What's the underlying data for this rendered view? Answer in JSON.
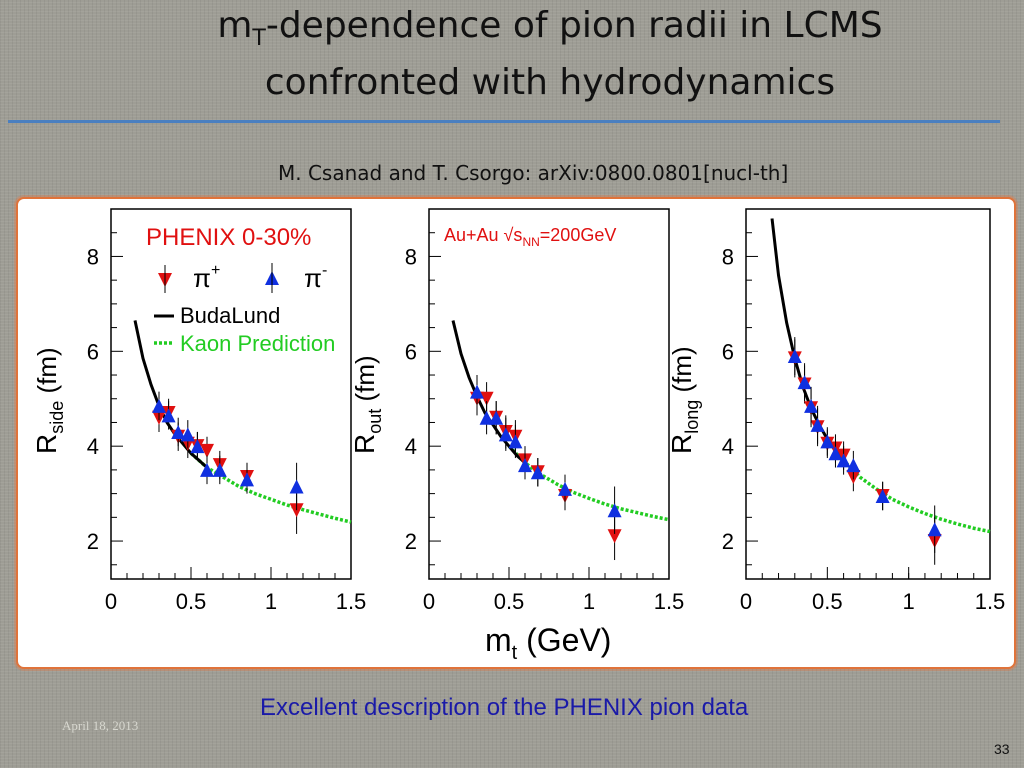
{
  "slide": {
    "title_main": "m",
    "title_sub": "T",
    "title_rest": "-dependence of pion radii in LCMS",
    "title_line2": "confronted with hydrodynamics",
    "citation": "M. Csanad and T. Csorgo:  arXiv:0800.0801[nucl-th]",
    "caption": "Excellent description of the PHENIX pion data",
    "date": "April 18, 2013",
    "page_number": "33",
    "colors": {
      "rule": "#4a7fc0",
      "panel_border": "#e0733a",
      "caption": "#1a1aa8",
      "pi_plus": "#e01010",
      "pi_minus": "#1030e0",
      "budalund": "#000000",
      "kaon": "#22cc22"
    }
  },
  "legend": {
    "centrality": "PHENIX  0-30%",
    "pi_plus_label": "π",
    "pi_plus_sup": "+",
    "pi_minus_label": "π",
    "pi_minus_sup": "-",
    "budalund": "BudaLund",
    "kaon": "Kaon Prediction",
    "system_main": "Au+Au √s",
    "system_sub": "NN",
    "system_rest": "=200GeV"
  },
  "chart_data": [
    {
      "type": "scatter",
      "ylabel_main": "R",
      "ylabel_sub": "side",
      "ylabel_unit": " (fm)",
      "xlim": [
        0,
        1.5
      ],
      "ylim": [
        1.2,
        9.0
      ],
      "xticks": [
        "0",
        "0.5",
        "1",
        "1.5"
      ],
      "xtick_values": [
        0,
        0.5,
        1,
        1.5
      ],
      "yticks": [
        "2",
        "4",
        "6",
        "8"
      ],
      "ytick_values": [
        2,
        4,
        6,
        8
      ],
      "series": [
        {
          "name": "π+",
          "x": [
            0.3,
            0.36,
            0.42,
            0.48,
            0.54,
            0.6,
            0.68,
            0.85,
            1.16
          ],
          "y": [
            4.6,
            4.7,
            4.2,
            4.05,
            4.0,
            3.9,
            3.6,
            3.35,
            2.65
          ],
          "err": [
            0.3,
            0.3,
            0.3,
            0.3,
            0.3,
            0.3,
            0.3,
            0.3,
            0.5
          ]
        },
        {
          "name": "π-",
          "x": [
            0.3,
            0.36,
            0.42,
            0.48,
            0.54,
            0.6,
            0.68,
            0.85,
            1.16
          ],
          "y": [
            4.85,
            4.65,
            4.3,
            4.25,
            4.0,
            3.5,
            3.5,
            3.3,
            3.15
          ],
          "err": [
            0.3,
            0.3,
            0.3,
            0.3,
            0.3,
            0.3,
            0.3,
            0.3,
            0.5
          ]
        },
        {
          "name": "BudaLund",
          "x": [
            0.15,
            0.2,
            0.25,
            0.3,
            0.35,
            0.4,
            0.45,
            0.5,
            0.55,
            0.6
          ],
          "y": [
            6.65,
            5.85,
            5.3,
            4.85,
            4.5,
            4.25,
            4.05,
            3.85,
            3.7,
            3.55
          ]
        },
        {
          "name": "Kaon Prediction",
          "x": [
            0.5,
            0.6,
            0.7,
            0.8,
            0.9,
            1.0,
            1.1,
            1.2,
            1.3,
            1.4,
            1.5
          ],
          "y": [
            3.85,
            3.55,
            3.35,
            3.15,
            3.0,
            2.88,
            2.76,
            2.66,
            2.57,
            2.48,
            2.4
          ]
        }
      ]
    },
    {
      "type": "scatter",
      "ylabel_main": "R",
      "ylabel_sub": "out",
      "ylabel_unit": " (fm)",
      "xlim": [
        0,
        1.5
      ],
      "ylim": [
        1.2,
        9.0
      ],
      "xticks": [
        "0",
        "0.5",
        "1",
        "1.5"
      ],
      "xtick_values": [
        0,
        0.5,
        1,
        1.5
      ],
      "yticks": [
        "2",
        "4",
        "6",
        "8"
      ],
      "ytick_values": [
        2,
        4,
        6,
        8
      ],
      "series": [
        {
          "name": "π+",
          "x": [
            0.3,
            0.36,
            0.42,
            0.48,
            0.54,
            0.6,
            0.68,
            0.85,
            1.16
          ],
          "y": [
            5.0,
            5.0,
            4.6,
            4.3,
            4.2,
            3.7,
            3.45,
            2.95,
            2.1
          ],
          "err": [
            0.35,
            0.35,
            0.35,
            0.35,
            0.35,
            0.3,
            0.3,
            0.3,
            0.5
          ]
        },
        {
          "name": "π-",
          "x": [
            0.3,
            0.36,
            0.42,
            0.48,
            0.54,
            0.6,
            0.68,
            0.85,
            1.16
          ],
          "y": [
            5.15,
            4.6,
            4.6,
            4.25,
            4.1,
            3.6,
            3.45,
            3.1,
            2.65
          ],
          "err": [
            0.35,
            0.35,
            0.35,
            0.35,
            0.35,
            0.3,
            0.3,
            0.3,
            0.5
          ]
        },
        {
          "name": "BudaLund",
          "x": [
            0.15,
            0.2,
            0.25,
            0.3,
            0.35,
            0.4,
            0.45,
            0.5,
            0.55,
            0.6
          ],
          "y": [
            6.65,
            5.95,
            5.45,
            5.05,
            4.7,
            4.45,
            4.2,
            4.0,
            3.8,
            3.65
          ]
        },
        {
          "name": "Kaon Prediction",
          "x": [
            0.5,
            0.6,
            0.7,
            0.8,
            0.9,
            1.0,
            1.1,
            1.2,
            1.3,
            1.4,
            1.5
          ],
          "y": [
            4.0,
            3.65,
            3.4,
            3.2,
            3.03,
            2.9,
            2.78,
            2.68,
            2.6,
            2.52,
            2.45
          ]
        }
      ]
    },
    {
      "type": "scatter",
      "ylabel_main": "R",
      "ylabel_sub": "long",
      "ylabel_unit": " (fm)",
      "xlim": [
        0,
        1.5
      ],
      "ylim": [
        1.2,
        9.0
      ],
      "xticks": [
        "0",
        "0.5",
        "1",
        "1.5"
      ],
      "xtick_values": [
        0,
        0.5,
        1,
        1.5
      ],
      "yticks": [
        "2",
        "4",
        "6",
        "8"
      ],
      "ytick_values": [
        2,
        4,
        6,
        8
      ],
      "series": [
        {
          "name": "π+",
          "x": [
            0.3,
            0.36,
            0.4,
            0.44,
            0.5,
            0.55,
            0.6,
            0.66,
            0.84,
            1.16
          ],
          "y": [
            5.85,
            5.3,
            4.8,
            4.4,
            4.05,
            3.95,
            3.8,
            3.35,
            2.95,
            2.0
          ],
          "err": [
            0.4,
            0.4,
            0.4,
            0.4,
            0.3,
            0.3,
            0.3,
            0.3,
            0.3,
            0.5
          ]
        },
        {
          "name": "π-",
          "x": [
            0.3,
            0.36,
            0.4,
            0.44,
            0.5,
            0.55,
            0.6,
            0.66,
            0.84,
            1.16
          ],
          "y": [
            5.9,
            5.35,
            4.85,
            4.45,
            4.1,
            3.85,
            3.7,
            3.6,
            2.95,
            2.25
          ],
          "err": [
            0.4,
            0.4,
            0.4,
            0.4,
            0.3,
            0.3,
            0.3,
            0.3,
            0.3,
            0.5
          ]
        },
        {
          "name": "BudaLund",
          "x": [
            0.16,
            0.2,
            0.25,
            0.3,
            0.35,
            0.4,
            0.45,
            0.5,
            0.55,
            0.6
          ],
          "y": [
            8.8,
            7.6,
            6.6,
            5.85,
            5.25,
            4.8,
            4.45,
            4.15,
            3.9,
            3.7
          ]
        },
        {
          "name": "Kaon Prediction",
          "x": [
            0.5,
            0.6,
            0.7,
            0.8,
            0.9,
            1.0,
            1.1,
            1.2,
            1.3,
            1.4,
            1.5
          ],
          "y": [
            4.15,
            3.7,
            3.35,
            3.1,
            2.88,
            2.72,
            2.58,
            2.46,
            2.36,
            2.27,
            2.2
          ]
        }
      ]
    }
  ],
  "x_axis_label_main": "m",
  "x_axis_label_sub": "t",
  "x_axis_label_unit": " (GeV)"
}
